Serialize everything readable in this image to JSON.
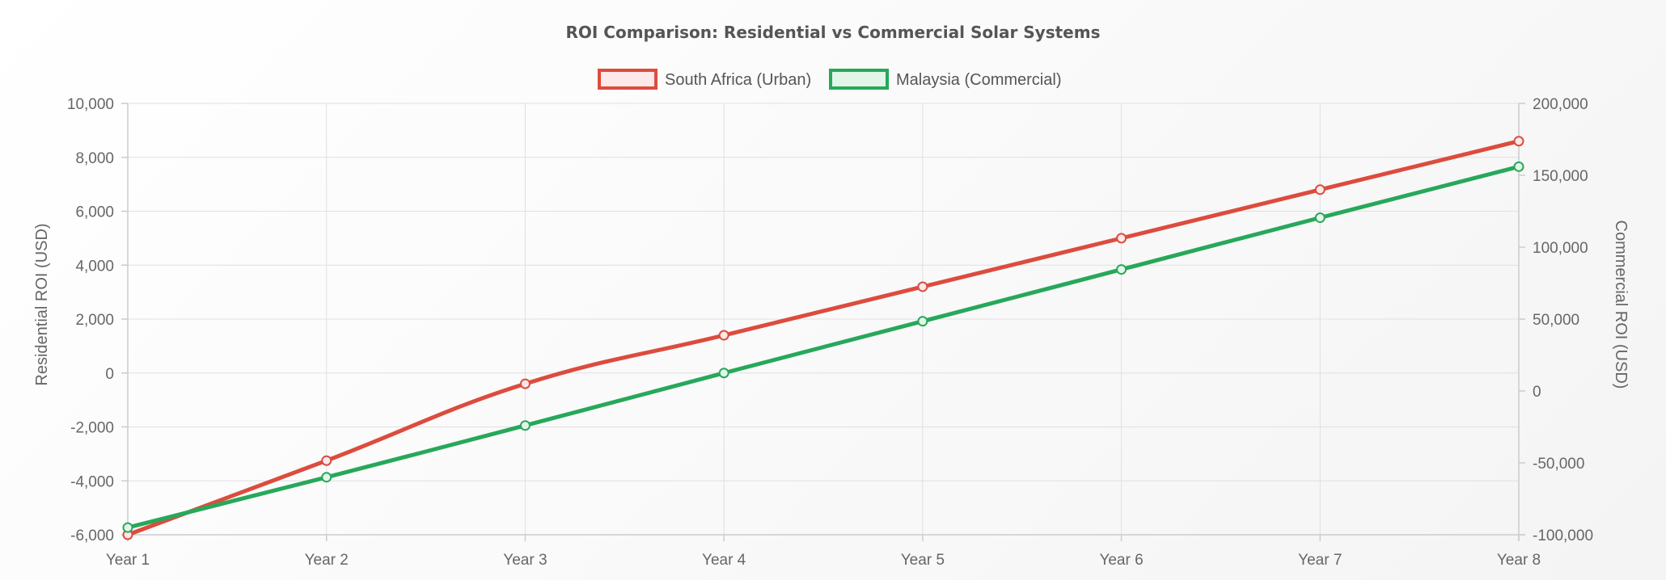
{
  "chart_data": {
    "type": "line",
    "title": "ROI Comparison: Residential vs Commercial Solar Systems",
    "categories": [
      "Year 1",
      "Year 2",
      "Year 3",
      "Year 4",
      "Year 5",
      "Year 6",
      "Year 7",
      "Year 8"
    ],
    "y_left": {
      "label": "Residential ROI (USD)",
      "range": [
        -6000,
        10000
      ],
      "ticks": [
        -6000,
        -4000,
        -2000,
        0,
        2000,
        4000,
        6000,
        8000,
        10000
      ],
      "tick_labels": [
        "-6,000",
        "-4,000",
        "-2,000",
        "0",
        "2,000",
        "4,000",
        "6,000",
        "8,000",
        "10,000"
      ]
    },
    "y_right": {
      "label": "Commercial ROI (USD)",
      "range": [
        -100000,
        200000
      ],
      "ticks": [
        -100000,
        -50000,
        0,
        50000,
        100000,
        150000,
        200000
      ],
      "tick_labels": [
        "-100,000",
        "-50,000",
        "0",
        "50,000",
        "100,000",
        "150,000",
        "200,000"
      ]
    },
    "series": [
      {
        "name": "South Africa (Urban)",
        "axis": "left",
        "color": "#dc4c3e",
        "fill": "#fde8ea",
        "values": [
          -6000,
          -3250,
          -400,
          1400,
          3200,
          5000,
          6800,
          8600
        ]
      },
      {
        "name": "Malaysia (Commercial)",
        "axis": "right",
        "color": "#27a85a",
        "fill": "#e3f5e8",
        "values": [
          -95000,
          -60000,
          -24000,
          12500,
          48500,
          84500,
          120500,
          156000
        ]
      }
    ],
    "grid": true,
    "legend_position": "top-center"
  }
}
